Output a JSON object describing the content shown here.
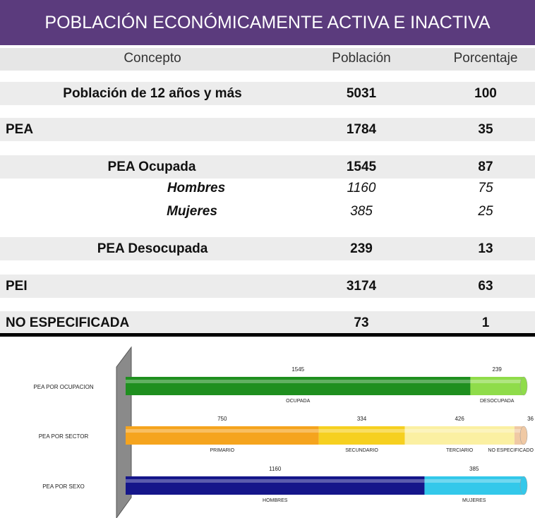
{
  "header": {
    "title": "POBLACIÓN ECONÓMICAMENTE ACTIVA E INACTIVA"
  },
  "table": {
    "columns": [
      "Concepto",
      "Población",
      "Porcentaje"
    ],
    "rows": [
      [
        "Población de 12 años y más",
        "5031",
        "100"
      ],
      [
        "PEA",
        "1784",
        "35"
      ],
      [
        "PEA Ocupada",
        "1545",
        "87"
      ],
      [
        "Hombres",
        "1160",
        "75"
      ],
      [
        "Mujeres",
        "385",
        "25"
      ],
      [
        "PEA Desocupada",
        "239",
        "13"
      ],
      [
        "PEI",
        "3174",
        "63"
      ],
      [
        "NO ESPECIFICADA",
        "73",
        "1"
      ]
    ]
  },
  "chart_data": {
    "type": "stacked-bar",
    "categories": [
      "PEA POR OCUPACION",
      "PEA POR SECTOR",
      "PEA POR SEXO"
    ],
    "bars": [
      {
        "segments": [
          {
            "name": "OCUPADA",
            "value": 1545,
            "color": "#1f8f1f"
          },
          {
            "name": "DESOCUPADA",
            "value": 239,
            "color": "#8fdc4a"
          }
        ]
      },
      {
        "segments": [
          {
            "name": "PRIMARIO",
            "value": 750,
            "color": "#f5a41e"
          },
          {
            "name": "SECUNDARIO",
            "value": 334,
            "color": "#f6d020"
          },
          {
            "name": "TERCIARIO",
            "value": 426,
            "color": "#fbf0a2"
          },
          {
            "name": "NO ESPECIFICADO",
            "value": 36,
            "color": "#f0c9a4"
          }
        ]
      },
      {
        "segments": [
          {
            "name": "HOMBRES",
            "value": 1160,
            "color": "#15168a"
          },
          {
            "name": "MUJERES",
            "value": 385,
            "color": "#33c8ea"
          }
        ]
      }
    ]
  }
}
